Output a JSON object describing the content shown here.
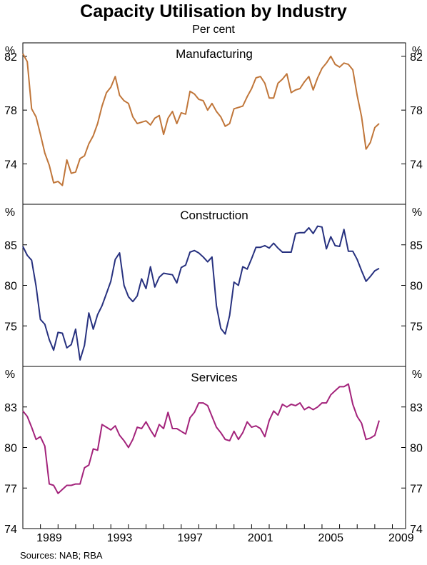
{
  "title": "Capacity Utilisation by Industry",
  "subtitle": "Per cent",
  "source": "Sources: NAB; RBA",
  "x_ticks": [
    "1989",
    "1993",
    "1997",
    "2001",
    "2005",
    "2009"
  ],
  "chart_data": [
    {
      "type": "line",
      "title": "Manufacturing",
      "unit": "%",
      "ylim": [
        71,
        83
      ],
      "yticks": [
        74,
        78,
        82
      ],
      "color": "#C0763A",
      "x_start": 1988.0,
      "x_step": 0.25,
      "values": [
        82.2,
        81.6,
        78.1,
        77.5,
        76.2,
        74.8,
        73.9,
        72.6,
        72.7,
        72.4,
        74.3,
        73.3,
        73.4,
        74.4,
        74.6,
        75.5,
        76.1,
        77.0,
        78.3,
        79.3,
        79.7,
        80.5,
        79.1,
        78.7,
        78.5,
        77.5,
        77.0,
        77.1,
        77.2,
        76.9,
        77.4,
        77.6,
        76.2,
        77.4,
        77.9,
        77.0,
        77.8,
        77.7,
        79.4,
        79.2,
        78.8,
        78.7,
        78.0,
        78.5,
        77.9,
        77.5,
        76.8,
        77.0,
        78.1,
        78.2,
        78.3,
        79.0,
        79.6,
        80.4,
        80.5,
        80.0,
        78.9,
        78.9,
        80.0,
        80.3,
        80.7,
        79.3,
        79.5,
        79.6,
        80.1,
        80.5,
        79.5,
        80.4,
        81.1,
        81.5,
        82.0,
        81.4,
        81.2,
        81.5,
        81.4,
        81.0,
        79.1,
        77.5,
        75.1,
        75.6,
        76.7,
        77.0
      ]
    },
    {
      "type": "line",
      "title": "Construction",
      "unit": "%",
      "ylim": [
        70,
        90
      ],
      "yticks": [
        75,
        80,
        85
      ],
      "color": "#27317F",
      "x_start": 1988.0,
      "x_step": 0.25,
      "values": [
        84.8,
        83.7,
        83.1,
        79.9,
        75.8,
        75.2,
        73.3,
        72.0,
        74.2,
        74.1,
        72.3,
        72.7,
        74.6,
        70.8,
        72.6,
        76.6,
        74.6,
        76.4,
        77.5,
        79.0,
        80.5,
        83.2,
        84.0,
        80.0,
        78.6,
        78.0,
        78.7,
        80.8,
        79.6,
        82.3,
        79.8,
        81.0,
        81.5,
        81.4,
        81.3,
        80.3,
        82.2,
        82.5,
        84.1,
        84.3,
        84.0,
        83.5,
        82.9,
        83.5,
        77.5,
        74.7,
        74.0,
        76.3,
        80.4,
        80.0,
        82.3,
        82.0,
        83.3,
        84.7,
        84.7,
        84.9,
        84.6,
        85.2,
        84.6,
        84.1,
        84.1,
        84.1,
        86.4,
        86.5,
        86.5,
        87.1,
        86.4,
        87.3,
        87.2,
        84.5,
        86.0,
        84.9,
        84.8,
        86.9,
        84.2,
        84.2,
        83.2,
        81.8,
        80.5,
        81.1,
        81.8,
        82.1
      ]
    },
    {
      "type": "line",
      "title": "Services",
      "unit": "%",
      "ylim": [
        74,
        86
      ],
      "yticks": [
        74,
        77,
        80,
        83
      ],
      "color": "#A3237B",
      "x_start": 1988.0,
      "x_step": 0.25,
      "values": [
        82.7,
        82.3,
        81.5,
        80.6,
        80.8,
        80.1,
        77.3,
        77.2,
        76.6,
        76.9,
        77.2,
        77.2,
        77.3,
        77.3,
        78.5,
        78.7,
        79.9,
        79.8,
        81.7,
        81.5,
        81.3,
        81.6,
        80.9,
        80.5,
        80.0,
        80.6,
        81.5,
        81.4,
        81.9,
        81.3,
        80.8,
        81.7,
        81.4,
        82.6,
        81.4,
        81.4,
        81.2,
        81.0,
        82.2,
        82.6,
        83.3,
        83.3,
        83.1,
        82.3,
        81.5,
        81.1,
        80.6,
        80.5,
        81.2,
        80.6,
        81.1,
        81.9,
        81.5,
        81.6,
        81.4,
        80.8,
        82.0,
        82.7,
        82.4,
        83.2,
        83.0,
        83.2,
        83.1,
        83.3,
        82.8,
        83.0,
        82.8,
        83.0,
        83.3,
        83.3,
        83.9,
        84.2,
        84.5,
        84.5,
        84.7,
        83.2,
        82.3,
        81.8,
        80.6,
        80.7,
        80.9,
        82.0
      ]
    }
  ]
}
